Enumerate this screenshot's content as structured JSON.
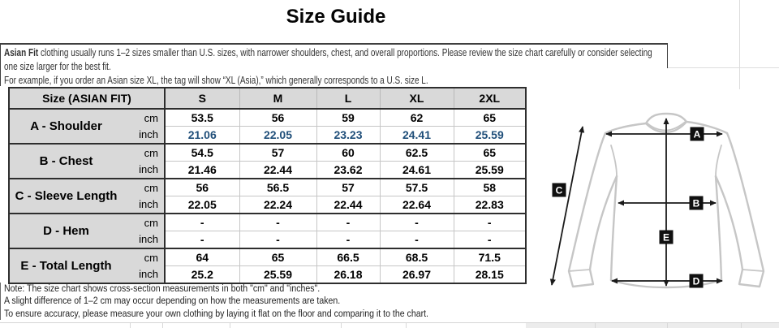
{
  "title": "Size Guide",
  "intro": {
    "bold_lead": "Asian Fit",
    "line1_rest": " clothing usually runs 1–2 sizes smaller than U.S. sizes, with narrower shoulders, chest, and overall proportions. Please review the size chart carefully or consider selecting",
    "line2": "one size larger for the best fit.",
    "line3": "For example, if you order an Asian size XL, the tag will show “XL (Asia),” which generally corresponds to a U.S. size L."
  },
  "size_table": {
    "header_label": "Size (ASIAN FIT)",
    "sizes": [
      "S",
      "M",
      "L",
      "XL",
      "2XL"
    ],
    "unit_labels": {
      "cm": "cm",
      "inch": "inch"
    },
    "rows": [
      {
        "name": "A - Shoulder",
        "cm": [
          "53.5",
          "56",
          "59",
          "62",
          "65"
        ],
        "inch": [
          "21.06",
          "22.05",
          "23.23",
          "24.41",
          "25.59"
        ],
        "inch_blue": true
      },
      {
        "name": "B - Chest",
        "cm": [
          "54.5",
          "57",
          "60",
          "62.5",
          "65"
        ],
        "inch": [
          "21.46",
          "22.44",
          "23.62",
          "24.61",
          "25.59"
        ],
        "inch_blue": false
      },
      {
        "name": "C - Sleeve Length",
        "cm": [
          "56",
          "56.5",
          "57",
          "57.5",
          "58"
        ],
        "inch": [
          "22.05",
          "22.24",
          "22.44",
          "22.64",
          "22.83"
        ],
        "inch_blue": false
      },
      {
        "name": "D - Hem",
        "cm": [
          "-",
          "-",
          "-",
          "-",
          "-"
        ],
        "inch": [
          "-",
          "-",
          "-",
          "-",
          "-"
        ],
        "inch_blue": false
      },
      {
        "name": "E - Total Length",
        "cm": [
          "64",
          "65",
          "66.5",
          "68.5",
          "71.5"
        ],
        "inch": [
          "25.2",
          "25.59",
          "26.18",
          "26.97",
          "28.15"
        ],
        "inch_blue": false
      }
    ]
  },
  "footnotes": [
    "Note: The size chart shows cross-section measurements in both \"cm\" and \"inches\".",
    "A slight difference of 1–2 cm may occur depending on how the measurements are taken.",
    "To ensure accuracy, please measure your own clothing by laying it flat on the floor and comparing it to the chart."
  ],
  "diagram": {
    "labels": [
      "A",
      "B",
      "C",
      "D",
      "E"
    ]
  },
  "colors": {
    "accent_blue": "#1f4e79",
    "header_gray": "#d9d9d9",
    "border_dark": "#2e2e2e",
    "garment_outline": "#c6c6c6"
  }
}
